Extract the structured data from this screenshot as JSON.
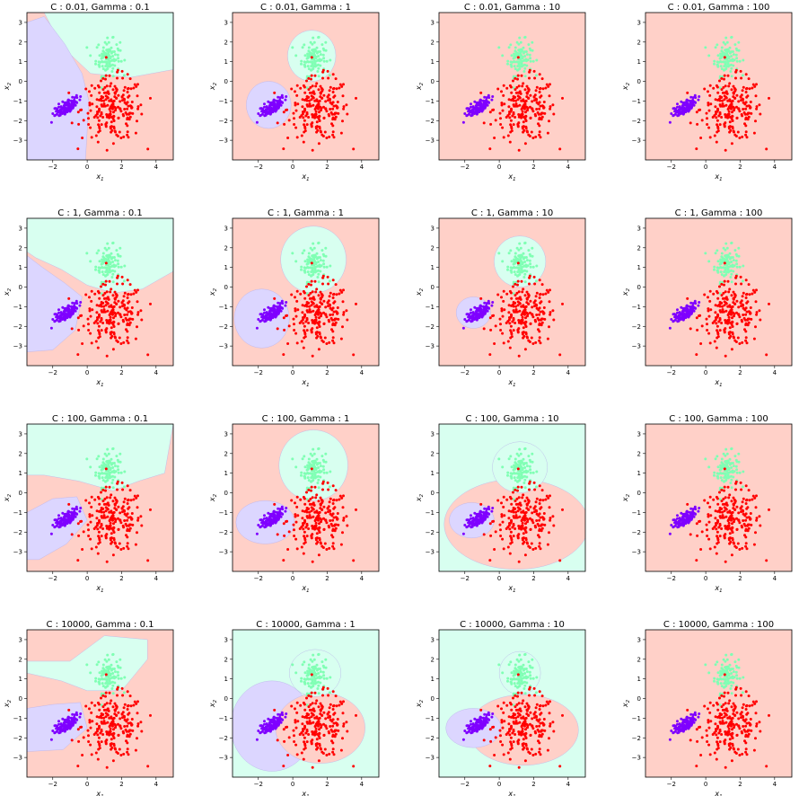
{
  "chart_data": {
    "type": "scatter",
    "rows": 4,
    "cols": 4,
    "panel_titles": [
      "C : 0.01, Gamma : 0.1",
      "C : 0.01, Gamma : 1",
      "C : 0.01, Gamma : 10",
      "C : 0.01, Gamma : 100",
      "C : 1, Gamma : 0.1",
      "C : 1, Gamma : 1",
      "C : 1, Gamma : 10",
      "C : 1, Gamma : 100",
      "C : 100, Gamma : 0.1",
      "C : 100, Gamma : 1",
      "C : 100, Gamma : 10",
      "C : 100, Gamma : 100",
      "C : 10000, Gamma : 0.1",
      "C : 10000, Gamma : 1",
      "C : 10000, Gamma : 10",
      "C : 10000, Gamma : 100"
    ],
    "xlabel": "x",
    "xlabel_sub": "1",
    "ylabel": "x",
    "ylabel_sub": "2",
    "xlim": [
      -3.5,
      5
    ],
    "ylim": [
      -4,
      3.5
    ],
    "xticks": [
      -2,
      0,
      2,
      4
    ],
    "yticks": [
      -3,
      -2,
      -1,
      0,
      1,
      2,
      3
    ],
    "class_colors": {
      "red_points": "#ff0000",
      "purple_points": "#7f00ff",
      "green_points": "#80ffb4",
      "red_region": "#ffd0c8",
      "purple_region": "#dcd6ff",
      "green_region": "#d8fff0"
    },
    "clusters": [
      {
        "color": "purple",
        "center": [
          -1.2,
          -1.3
        ],
        "spread": [
          0.4,
          0.3
        ],
        "count": 110
      },
      {
        "color": "green",
        "center": [
          1.2,
          1.2
        ],
        "spread": [
          0.35,
          0.45
        ],
        "count": 110
      },
      {
        "color": "red",
        "center": [
          1.5,
          -1.4
        ],
        "spread": [
          0.9,
          0.8
        ],
        "count": 220
      }
    ]
  }
}
